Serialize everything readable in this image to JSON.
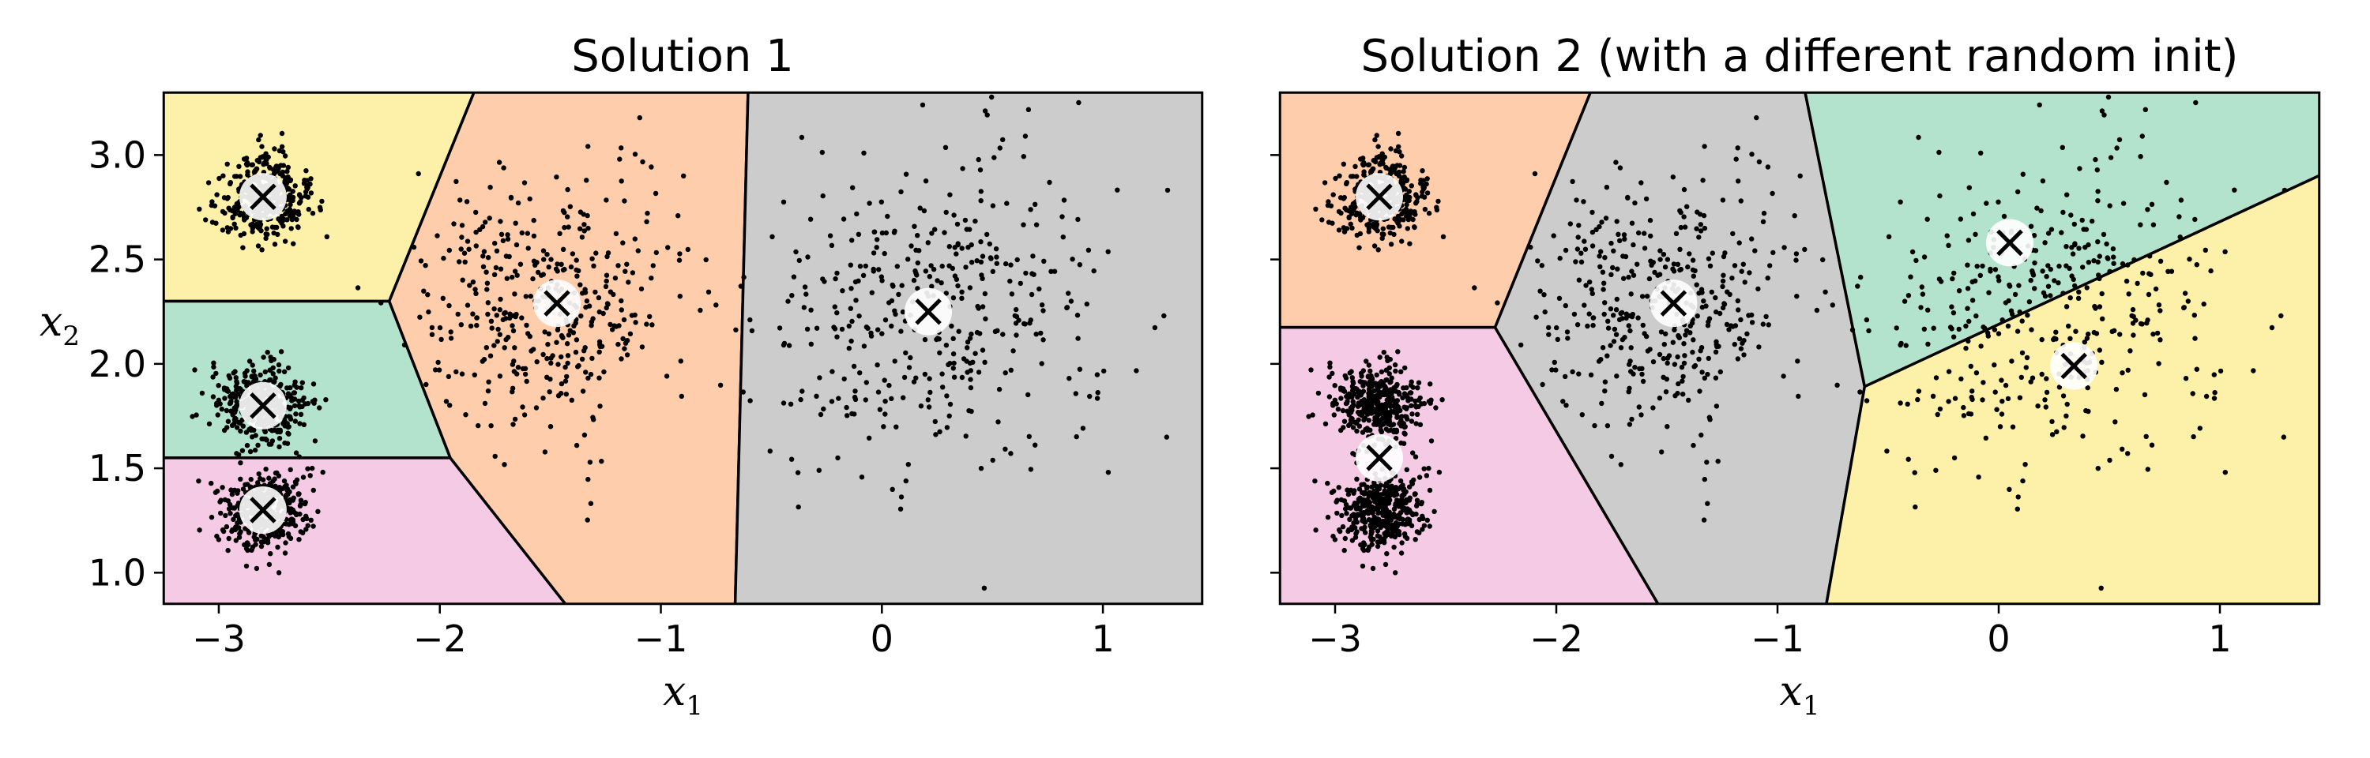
{
  "chart_data": [
    {
      "type": "scatter",
      "title": "Solution 1",
      "xlabel": "x",
      "xlabel_sub": "1",
      "ylabel": "x",
      "ylabel_sub": "2",
      "xlim": [
        -3.25,
        1.45
      ],
      "ylim": [
        0.85,
        3.3
      ],
      "xticks": [
        -3,
        -2,
        -1,
        0,
        1
      ],
      "xtick_labels": [
        "−3",
        "−2",
        "−1",
        "0",
        "1"
      ],
      "yticks": [
        1.0,
        1.5,
        2.0,
        2.5,
        3.0
      ],
      "ytick_labels": [
        "1.0",
        "1.5",
        "2.0",
        "2.5",
        "3.0"
      ],
      "grid": false,
      "centroid_marker": "x-in-white-circle",
      "blobs": [
        {
          "center": [
            -2.8,
            2.8
          ],
          "std": 0.1,
          "n": 400
        },
        {
          "center": [
            -2.8,
            1.8
          ],
          "std": 0.1,
          "n": 400
        },
        {
          "center": [
            -2.8,
            1.3
          ],
          "std": 0.1,
          "n": 400
        },
        {
          "center": [
            -1.5,
            2.3
          ],
          "std": 0.3,
          "n": 400
        },
        {
          "center": [
            0.2,
            2.25
          ],
          "std": 0.4,
          "n": 400
        }
      ],
      "centroids": [
        {
          "x": -2.8,
          "y": 2.8,
          "color": "#fdf0a8"
        },
        {
          "x": -2.8,
          "y": 1.8,
          "color": "#b3e2cd"
        },
        {
          "x": -2.8,
          "y": 1.3,
          "color": "#f4cae4"
        },
        {
          "x": -1.47,
          "y": 2.29,
          "color": "#fdcdac"
        },
        {
          "x": 0.21,
          "y": 2.25,
          "color": "#cccccc"
        }
      ]
    },
    {
      "type": "scatter",
      "title": "Solution 2 (with a different random init)",
      "xlabel": "x",
      "xlabel_sub": "1",
      "xlim": [
        -3.25,
        1.45
      ],
      "ylim": [
        0.85,
        3.3
      ],
      "xticks": [
        -3,
        -2,
        -1,
        0,
        1
      ],
      "xtick_labels": [
        "−3",
        "−2",
        "−1",
        "0",
        "1"
      ],
      "yticks": [
        1.0,
        1.5,
        2.0,
        2.5,
        3.0
      ],
      "grid": false,
      "centroid_marker": "x-in-white-circle",
      "blobs": [
        {
          "center": [
            -2.8,
            2.8
          ],
          "std": 0.1,
          "n": 400
        },
        {
          "center": [
            -2.8,
            1.8
          ],
          "std": 0.1,
          "n": 400
        },
        {
          "center": [
            -2.8,
            1.3
          ],
          "std": 0.1,
          "n": 400
        },
        {
          "center": [
            -1.5,
            2.3
          ],
          "std": 0.3,
          "n": 400
        },
        {
          "center": [
            0.2,
            2.25
          ],
          "std": 0.4,
          "n": 400
        }
      ],
      "centroids": [
        {
          "x": -2.8,
          "y": 2.8,
          "color": "#fdcdac"
        },
        {
          "x": -2.8,
          "y": 1.55,
          "color": "#f4cae4"
        },
        {
          "x": -1.47,
          "y": 2.29,
          "color": "#cccccc"
        },
        {
          "x": 0.05,
          "y": 2.58,
          "color": "#b3e2cd"
        },
        {
          "x": 0.34,
          "y": 1.99,
          "color": "#fdf0a8"
        }
      ]
    }
  ]
}
